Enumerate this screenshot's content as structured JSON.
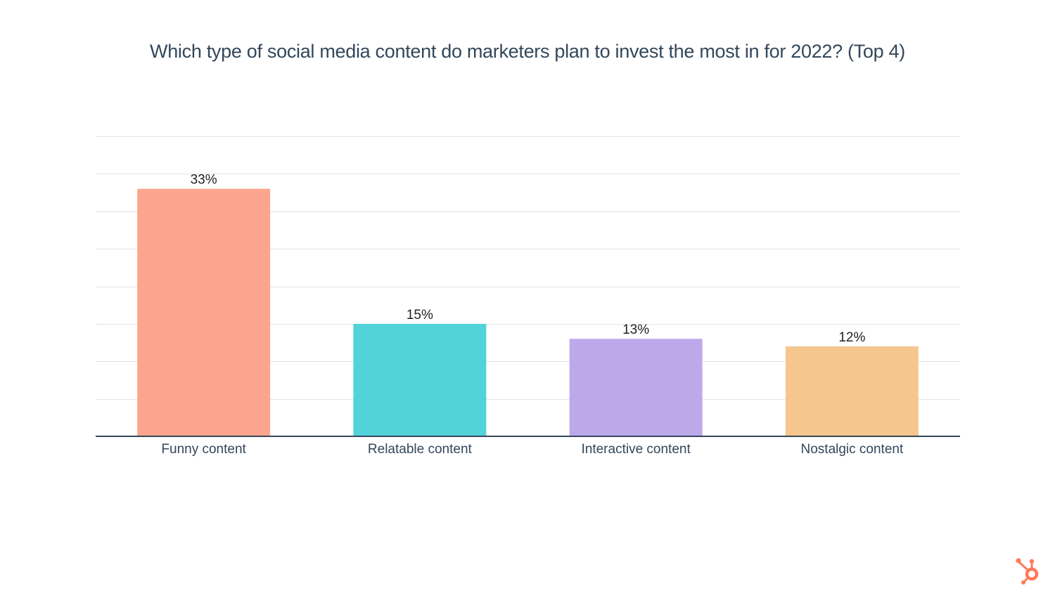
{
  "chart_data": {
    "type": "bar",
    "title": "Which type of social media content do marketers plan to invest the most in for 2022? (Top 4)",
    "xlabel": "",
    "ylabel": "",
    "categories": [
      "Funny content",
      "Relatable content",
      "Interactive content",
      "Nostalgic content"
    ],
    "values": [
      33,
      15,
      13,
      12
    ],
    "data_labels": [
      "33%",
      "15%",
      "13%",
      "12%"
    ],
    "colors": [
      "#fca58e",
      "#51d3d9",
      "#bda9ea",
      "#f5c68e"
    ],
    "ylim": [
      0,
      40
    ],
    "ytick_step": 5,
    "grid": true,
    "legend": "none",
    "y_tick_labels_visible": false
  },
  "brand": {
    "logo_icon": "hubspot-sprocket-icon",
    "logo_color": "#ff7a59"
  },
  "colors": {
    "title": "#33475b",
    "axis": "#33475b",
    "grid": "#dfe3eb",
    "label": "#33475b",
    "value_label": "#222222"
  }
}
